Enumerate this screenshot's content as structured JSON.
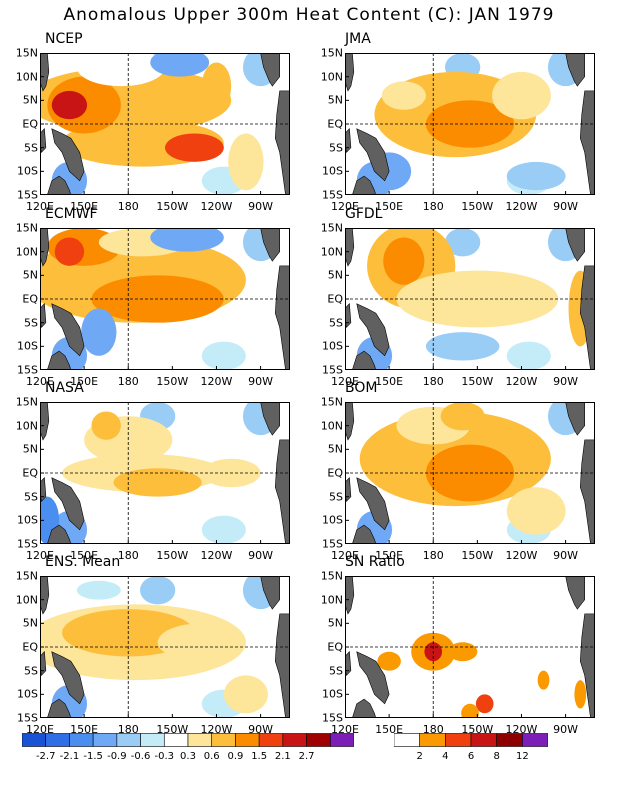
{
  "title": "Anomalous Upper 300m Heat Content (C): JAN 1979",
  "chart_data": {
    "type": "heatmap",
    "xticks": [
      "120E",
      "150E",
      "180",
      "150W",
      "120W",
      "90W"
    ],
    "yticks": [
      "15N",
      "10N",
      "5N",
      "EQ",
      "5S",
      "10S",
      "15S"
    ],
    "xrange": [
      120,
      290
    ],
    "yrange": [
      -15,
      15
    ],
    "panels": [
      {
        "name": "NCEP"
      },
      {
        "name": "JMA"
      },
      {
        "name": "ECMWF"
      },
      {
        "name": "GFDL"
      },
      {
        "name": "NASA"
      },
      {
        "name": "BOM"
      },
      {
        "name": "ENS. Mean"
      },
      {
        "name": "SN Ratio"
      }
    ],
    "colorbar_anomaly": {
      "labels": [
        "-2.7",
        "-2.1",
        "-1.5",
        "-0.9",
        "-0.6",
        "-0.3",
        "0.3",
        "0.6",
        "0.9",
        "1.5",
        "2.1",
        "2.7"
      ],
      "colors": [
        "#1a52d6",
        "#2e6fe6",
        "#4a8fef",
        "#6fa8f5",
        "#9acdf6",
        "#c4ecf8",
        "#ffffff",
        "#fde59a",
        "#fdbe3c",
        "#fb8c00",
        "#f04010",
        "#c81414",
        "#a00000",
        "#7c1fb8"
      ]
    },
    "colorbar_sn": {
      "labels": [
        "2",
        "4",
        "6",
        "8",
        "12"
      ],
      "colors": [
        "#ffffff",
        "#fb9a00",
        "#f04010",
        "#c81414",
        "#8c0000",
        "#7c1fb8"
      ]
    }
  }
}
